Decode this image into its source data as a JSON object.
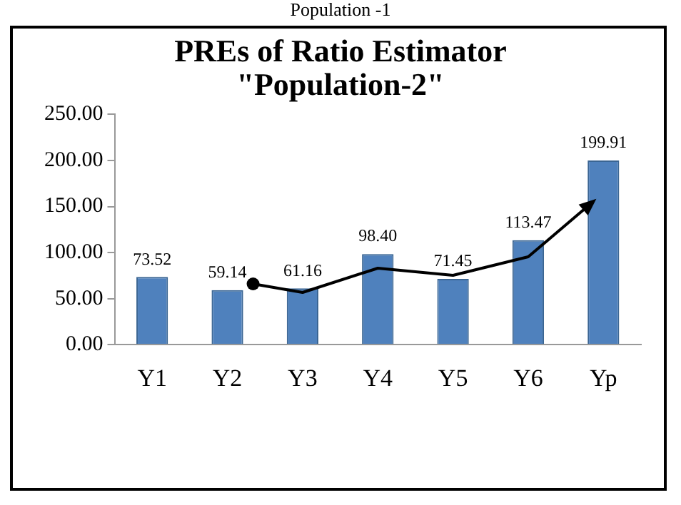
{
  "chart_data": {
    "type": "bar",
    "title": [
      "PREs of Ratio Estimator",
      "\"Population-2\""
    ],
    "categories": [
      "Y1",
      "Y2",
      "Y3",
      "Y4",
      "Y5",
      "Y6",
      "Yp"
    ],
    "values": [
      73.52,
      59.14,
      61.16,
      98.4,
      71.45,
      113.47,
      199.91
    ],
    "color": "#4f81bd",
    "ylim": [
      0,
      250
    ],
    "yticks": [
      {
        "value": 0,
        "label": "0.00"
      },
      {
        "value": 50,
        "label": "50.00"
      },
      {
        "value": 100,
        "label": "100.00"
      },
      {
        "value": 150,
        "label": "150.00"
      },
      {
        "value": 200,
        "label": "200.00"
      },
      {
        "value": 250,
        "label": "250.00"
      }
    ],
    "value_labels": [
      "73.52",
      "59.14",
      "61.16",
      "98.40",
      "71.45",
      "113.47",
      "199.91"
    ],
    "grid": false,
    "legend": false,
    "annotations": [
      "Population -1"
    ]
  }
}
